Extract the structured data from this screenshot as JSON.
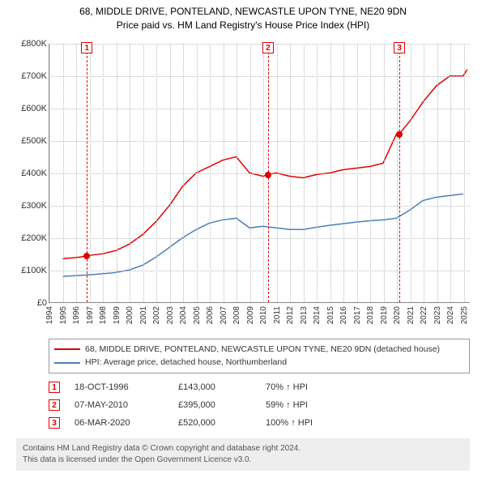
{
  "title": {
    "line1": "68, MIDDLE DRIVE, PONTELAND, NEWCASTLE UPON TYNE, NE20 9DN",
    "line2": "Price paid vs. HM Land Registry's House Price Index (HPI)"
  },
  "chart": {
    "type": "line",
    "background_color": "#ffffff",
    "grid_color": "#bbbbbb",
    "axis_color": "#888888",
    "xlim": [
      1994,
      2025.5
    ],
    "ylim": [
      0,
      800000
    ],
    "ytick_step": 100000,
    "yticks": [
      "£0",
      "£100K",
      "£200K",
      "£300K",
      "£400K",
      "£500K",
      "£600K",
      "£700K",
      "£800K"
    ],
    "xticks": [
      1994,
      1995,
      1996,
      1997,
      1998,
      1999,
      2000,
      2001,
      2002,
      2003,
      2004,
      2005,
      2006,
      2007,
      2008,
      2009,
      2010,
      2011,
      2012,
      2013,
      2014,
      2015,
      2016,
      2017,
      2018,
      2019,
      2020,
      2021,
      2022,
      2023,
      2024,
      2025
    ],
    "series": [
      {
        "name": "68, MIDDLE DRIVE, PONTELAND, NEWCASTLE UPON TYNE, NE20 9DN (detached house)",
        "color": "#e00000",
        "width": 1.5,
        "x": [
          1995,
          1996,
          1996.8,
          1997,
          1998,
          1999,
          2000,
          2001,
          2002,
          2003,
          2004,
          2005,
          2006,
          2007,
          2008,
          2009,
          2010,
          2010.35,
          2011,
          2012,
          2013,
          2014,
          2015,
          2016,
          2017,
          2018,
          2019,
          2020,
          2020.2,
          2021,
          2022,
          2023,
          2024,
          2025,
          2025.3
        ],
        "y": [
          135000,
          138000,
          143000,
          145000,
          150000,
          160000,
          180000,
          210000,
          250000,
          300000,
          360000,
          400000,
          420000,
          440000,
          450000,
          400000,
          390000,
          395000,
          400000,
          390000,
          385000,
          395000,
          400000,
          410000,
          415000,
          420000,
          430000,
          520000,
          520000,
          560000,
          620000,
          670000,
          700000,
          700000,
          720000
        ]
      },
      {
        "name": "HPI: Average price, detached house, Northumberland",
        "color": "#4a7ebb",
        "width": 1.5,
        "x": [
          1995,
          1996,
          1997,
          1998,
          1999,
          2000,
          2001,
          2002,
          2003,
          2004,
          2005,
          2006,
          2007,
          2008,
          2009,
          2010,
          2011,
          2012,
          2013,
          2014,
          2015,
          2016,
          2017,
          2018,
          2019,
          2020,
          2021,
          2022,
          2023,
          2024,
          2025
        ],
        "y": [
          80000,
          82000,
          85000,
          88000,
          92000,
          100000,
          115000,
          140000,
          170000,
          200000,
          225000,
          245000,
          255000,
          260000,
          230000,
          235000,
          230000,
          225000,
          225000,
          232000,
          238000,
          243000,
          248000,
          252000,
          255000,
          260000,
          285000,
          315000,
          325000,
          330000,
          335000
        ]
      }
    ],
    "sale_points": [
      {
        "x": 1996.8,
        "y": 143000
      },
      {
        "x": 2010.35,
        "y": 395000
      },
      {
        "x": 2020.18,
        "y": 520000
      }
    ],
    "markers": [
      {
        "n": "1",
        "x": 1996.8
      },
      {
        "n": "2",
        "x": 2010.35
      },
      {
        "n": "3",
        "x": 2020.18
      }
    ]
  },
  "legend": [
    {
      "color": "#e00000",
      "label": "68, MIDDLE DRIVE, PONTELAND, NEWCASTLE UPON TYNE, NE20 9DN (detached house)"
    },
    {
      "color": "#4a7ebb",
      "label": "HPI: Average price, detached house, Northumberland"
    }
  ],
  "events": [
    {
      "n": "1",
      "date": "18-OCT-1996",
      "price": "£143,000",
      "delta": "70% ↑ HPI"
    },
    {
      "n": "2",
      "date": "07-MAY-2010",
      "price": "£395,000",
      "delta": "59% ↑ HPI"
    },
    {
      "n": "3",
      "date": "06-MAR-2020",
      "price": "£520,000",
      "delta": "100% ↑ HPI"
    }
  ],
  "footer": {
    "line1": "Contains HM Land Registry data © Crown copyright and database right 2024.",
    "line2": "This data is licensed under the Open Government Licence v3.0."
  }
}
